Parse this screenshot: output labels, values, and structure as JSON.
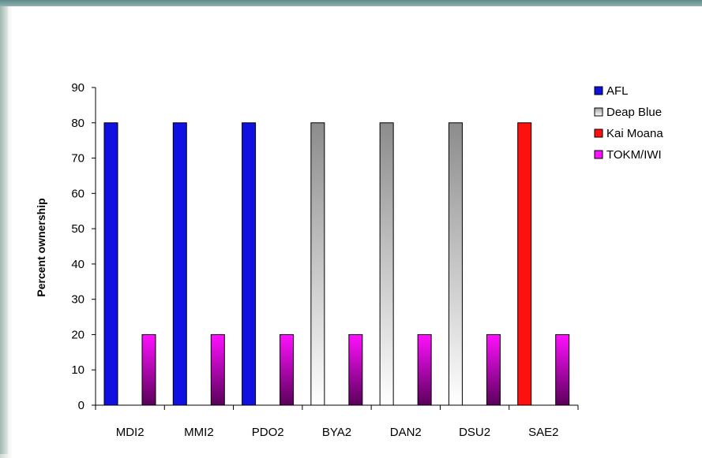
{
  "chart_data": {
    "type": "bar",
    "ylabel": "Percent ownership",
    "xlabel": "",
    "ylim": [
      0,
      90
    ],
    "yticks": [
      0,
      10,
      20,
      30,
      40,
      50,
      60,
      70,
      80,
      90
    ],
    "grid": false,
    "legend_placement": "top-right",
    "categories": [
      "MDI2",
      "MMI2",
      "PDO2",
      "BYA2",
      "DAN2",
      "DSU2",
      "SAE2"
    ],
    "series": [
      {
        "name": "AFL",
        "values": [
          80,
          80,
          80,
          0,
          0,
          0,
          0
        ],
        "color": "#1010e0"
      },
      {
        "name": "Deap Blue",
        "values": [
          0,
          0,
          0,
          80,
          80,
          80,
          0
        ],
        "color": "#c8c8c8"
      },
      {
        "name": "Kai Moana",
        "values": [
          0,
          0,
          0,
          0,
          0,
          0,
          80
        ],
        "color": "#ff1010"
      },
      {
        "name": "TOKM/IWI",
        "values": [
          20,
          20,
          20,
          20,
          20,
          20,
          20
        ],
        "color": "#ff10ff"
      }
    ]
  }
}
